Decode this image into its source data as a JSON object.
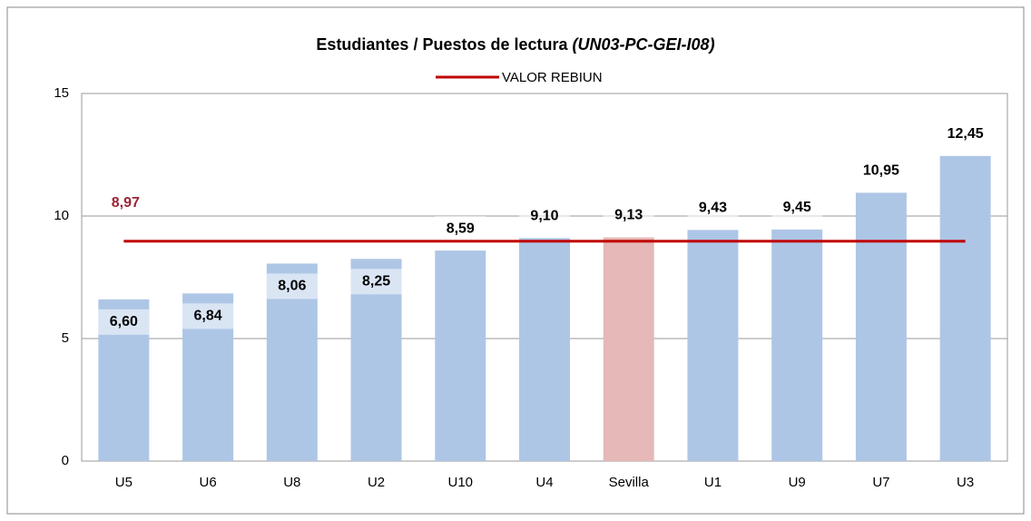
{
  "chart_data": {
    "type": "bar",
    "title": "Estudiantes / Puestos de lectura",
    "title_suffix": "(UN03-PC-GEI-I08)",
    "categories": [
      "U5",
      "U6",
      "U8",
      "U2",
      "U10",
      "U4",
      "Sevilla",
      "U1",
      "U9",
      "U7",
      "U3"
    ],
    "values": [
      6.6,
      6.84,
      8.06,
      8.25,
      8.59,
      9.1,
      9.13,
      9.43,
      9.45,
      10.95,
      12.45
    ],
    "value_labels": [
      "6,60",
      "6,84",
      "8,06",
      "8,25",
      "8,59",
      "9,10",
      "9,13",
      "9,43",
      "9,45",
      "10,95",
      "12,45"
    ],
    "colors": [
      "#aec6e6",
      "#aec6e6",
      "#aec6e6",
      "#aec6e6",
      "#aec6e6",
      "#aec6e6",
      "#e6b8b8",
      "#aec6e6",
      "#aec6e6",
      "#aec6e6",
      "#aec6e6"
    ],
    "reference": {
      "name": "VALOR REBIUN",
      "value": 8.97,
      "value_label": "8,97",
      "color": "#c00000",
      "label_color": "#9b2335"
    },
    "ylim": [
      0,
      15
    ],
    "yticks": [
      0,
      5,
      10,
      15
    ],
    "grid": true
  }
}
